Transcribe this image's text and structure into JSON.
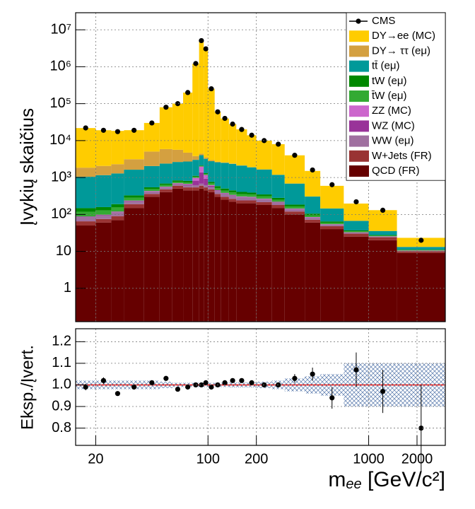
{
  "chart_data": {
    "type": "histogram",
    "stacked": true,
    "y_label": "Įvykių skaičius",
    "x_label": [
      "m",
      "ee",
      " [GeV/c²]"
    ],
    "bins": [
      15,
      20,
      25,
      30,
      40,
      50,
      60,
      70,
      80,
      88,
      94,
      100,
      110,
      120,
      135,
      150,
      175,
      200,
      250,
      300,
      400,
      500,
      700,
      1000,
      1500,
      3000
    ],
    "xlim": [
      15,
      3000
    ],
    "xticks": [
      20,
      100,
      200,
      1000,
      2000
    ],
    "log_x": true,
    "log_y": true,
    "ylim": [
      0.125,
      29000000
    ],
    "yticks": [
      1,
      10,
      {
        "value": 100,
        "label": "10²"
      },
      {
        "value": 1000,
        "label": "10³"
      },
      {
        "value": 10000,
        "label": "10⁴"
      },
      {
        "value": 100000,
        "label": "10⁵"
      },
      {
        "value": 1000000,
        "label": "10⁶"
      },
      {
        "value": 10000000,
        "label": "10⁷"
      }
    ],
    "grid": true,
    "legend": "upper right",
    "data": {
      "name": "CMS",
      "color": "#000000",
      "values": [
        22000,
        19000,
        17500,
        19000,
        30000,
        80000,
        100000,
        200000,
        1220000,
        5100000,
        3050000,
        253000,
        60000,
        40000,
        28000,
        20000,
        14000,
        10000,
        8000,
        4000,
        1600,
        640,
        220,
        130,
        20
      ]
    },
    "series": [
      {
        "name": "DY→ee (MC)",
        "color": "#ffcc00",
        "values": [
          20000,
          17000,
          16000,
          16000,
          25000,
          74000,
          95000,
          195000,
          1200000,
          5000000,
          3000000,
          250000,
          57000,
          37000,
          25500,
          18000,
          12000,
          8300,
          6800,
          3300,
          1200,
          450,
          130,
          95,
          10
        ]
      },
      {
        "name": "DY→ ττ (eμ)",
        "color": "#d4a040",
        "values": [
          800,
          900,
          1000,
          1500,
          3000,
          3500,
          3000,
          2000,
          800,
          400,
          300,
          200,
          100,
          60,
          40,
          30,
          20,
          15,
          10,
          5,
          2,
          1,
          0.5,
          0.2,
          0.1
        ]
      },
      {
        "name": "tt̄ (eμ)",
        "color": "#009999",
        "values": [
          900,
          1000,
          1100,
          1300,
          1500,
          1700,
          1800,
          1900,
          1900,
          1900,
          1900,
          2000,
          2000,
          2000,
          1900,
          1700,
          1500,
          1300,
          900,
          500,
          200,
          80,
          30,
          8,
          2
        ]
      },
      {
        "name": "tW (eμ)",
        "color": "#008800",
        "values": [
          30,
          30,
          35,
          45,
          55,
          60,
          65,
          70,
          70,
          70,
          70,
          70,
          65,
          60,
          55,
          50,
          45,
          40,
          30,
          20,
          10,
          5,
          2,
          1,
          0.3
        ]
      },
      {
        "name": "t̄W (eμ)",
        "color": "#33aa33",
        "values": [
          30,
          30,
          35,
          45,
          55,
          60,
          65,
          70,
          70,
          70,
          70,
          70,
          65,
          60,
          55,
          50,
          45,
          40,
          30,
          20,
          10,
          5,
          2,
          1,
          0.3
        ]
      },
      {
        "name": "ZZ (MC)",
        "color": "#cc66cc",
        "values": [
          1,
          1,
          2,
          3,
          5,
          7,
          10,
          20,
          150,
          600,
          250,
          30,
          10,
          8,
          6,
          5,
          4,
          3,
          2,
          1.5,
          1,
          0.5,
          0.3,
          0.2,
          0.05
        ]
      },
      {
        "name": "WZ (MC)",
        "color": "#993399",
        "values": [
          2,
          2,
          3,
          5,
          8,
          10,
          15,
          30,
          200,
          700,
          300,
          40,
          15,
          10,
          8,
          7,
          6,
          5,
          4,
          3,
          2,
          1,
          0.5,
          0.3,
          0.1
        ]
      },
      {
        "name": "WW (eμ)",
        "color": "#a070a0",
        "values": [
          20,
          20,
          25,
          40,
          60,
          70,
          80,
          80,
          80,
          80,
          80,
          75,
          70,
          65,
          60,
          55,
          50,
          45,
          35,
          20,
          10,
          5,
          2,
          1,
          0.3
        ]
      },
      {
        "name": "W+Jets (FR)",
        "color": "#993333",
        "values": [
          15,
          15,
          20,
          40,
          60,
          80,
          100,
          90,
          90,
          100,
          90,
          80,
          60,
          50,
          45,
          40,
          40,
          35,
          30,
          20,
          12,
          8,
          5,
          4,
          1
        ]
      },
      {
        "name": "QCD (FR)",
        "color": "#660000",
        "values": [
          50,
          60,
          70,
          150,
          300,
          400,
          500,
          450,
          450,
          500,
          450,
          400,
          300,
          250,
          220,
          200,
          200,
          180,
          150,
          100,
          60,
          40,
          25,
          20,
          9
        ]
      }
    ],
    "ratio": {
      "type": "scatter",
      "y_label": "Eksp./Įvert.",
      "ylim": [
        0.72,
        1.26
      ],
      "yticks": [
        0.8,
        0.9,
        {
          "value": 1,
          "label": "1.0"
        },
        1.1,
        1.2
      ],
      "values": [
        0.99,
        1.02,
        0.96,
        0.99,
        1.01,
        1.03,
        0.98,
        0.99,
        1.0,
        1.0,
        1.01,
        0.99,
        1.0,
        1.01,
        1.02,
        1.02,
        1.01,
        1.0,
        1.0,
        1.03,
        1.05,
        0.94,
        1.07,
        0.97,
        0.8
      ],
      "errors": [
        0.015,
        0.015,
        0.01,
        0.01,
        0.01,
        0.008,
        0.005,
        0.004,
        0.002,
        0.001,
        0.001,
        0.004,
        0.006,
        0.007,
        0.008,
        0.009,
        0.01,
        0.01,
        0.012,
        0.02,
        0.03,
        0.05,
        0.08,
        0.1,
        0.2
      ],
      "band_errors": [
        0.02,
        0.02,
        0.02,
        0.02,
        0.02,
        0.015,
        0.01,
        0.01,
        0.01,
        0.01,
        0.01,
        0.01,
        0.01,
        0.01,
        0.012,
        0.012,
        0.012,
        0.015,
        0.02,
        0.03,
        0.04,
        0.05,
        0.1,
        0.1,
        0.1
      ],
      "ref_color": "#ee0000"
    }
  }
}
